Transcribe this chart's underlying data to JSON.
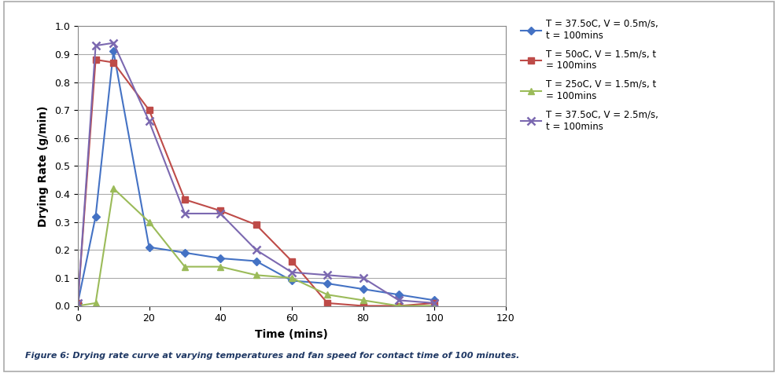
{
  "xlabel": "Time (mins)",
  "ylabel": "Drying Rate (g/min)",
  "caption": "Figure 6: Drying rate curve at varying temperatures and fan speed for contact time of 100 minutes.",
  "xlim": [
    0,
    120
  ],
  "ylim": [
    0,
    1
  ],
  "xticks": [
    0,
    20,
    40,
    60,
    80,
    100,
    120
  ],
  "yticks": [
    0,
    0.1,
    0.2,
    0.3,
    0.4,
    0.5,
    0.6,
    0.7,
    0.8,
    0.9,
    1
  ],
  "series": [
    {
      "label": "T = 37.5oC, V = 0.5m/s,\nt = 100mins",
      "color": "#4472C4",
      "marker": "D",
      "markersize": 5,
      "x": [
        0,
        5,
        10,
        20,
        30,
        40,
        50,
        60,
        70,
        80,
        90,
        100
      ],
      "y": [
        0.01,
        0.32,
        0.91,
        0.21,
        0.19,
        0.17,
        0.16,
        0.09,
        0.08,
        0.06,
        0.04,
        0.02
      ]
    },
    {
      "label": "T = 50oC, V = 1.5m/s, t\n= 100mins",
      "color": "#BE4B48",
      "marker": "s",
      "markersize": 6,
      "x": [
        0,
        5,
        10,
        20,
        30,
        40,
        50,
        60,
        70,
        80,
        90,
        100
      ],
      "y": [
        0.01,
        0.88,
        0.87,
        0.7,
        0.38,
        0.34,
        0.29,
        0.16,
        0.01,
        0.0,
        0.0,
        0.01
      ]
    },
    {
      "label": "T = 25oC, V = 1.5m/s, t\n= 100mins",
      "color": "#9BBB59",
      "marker": "^",
      "markersize": 6,
      "x": [
        0,
        5,
        10,
        20,
        30,
        40,
        50,
        60,
        70,
        80,
        90,
        100
      ],
      "y": [
        0.0,
        0.01,
        0.42,
        0.3,
        0.14,
        0.14,
        0.11,
        0.1,
        0.04,
        0.02,
        0.0,
        0.0
      ]
    },
    {
      "label": "T = 37.5oC, V = 2.5m/s,\nt = 100mins",
      "color": "#7B68B0",
      "marker": "x",
      "markersize": 7,
      "markeredgewidth": 1.8,
      "x": [
        0,
        5,
        10,
        20,
        30,
        40,
        50,
        60,
        70,
        80,
        90,
        100
      ],
      "y": [
        0.01,
        0.93,
        0.94,
        0.66,
        0.33,
        0.33,
        0.2,
        0.12,
        0.11,
        0.1,
        0.02,
        0.01
      ]
    }
  ],
  "background_color": "#FFFFFF",
  "grid_color": "#AAAAAA",
  "plot_bg_color": "#FFFFFF",
  "legend_fontsize": 8.5,
  "axis_label_fontsize": 10,
  "tick_fontsize": 9,
  "caption_fontsize": 8,
  "caption_color": "#1F3864",
  "border_color": "#CCCCCC",
  "linewidth": 1.5
}
